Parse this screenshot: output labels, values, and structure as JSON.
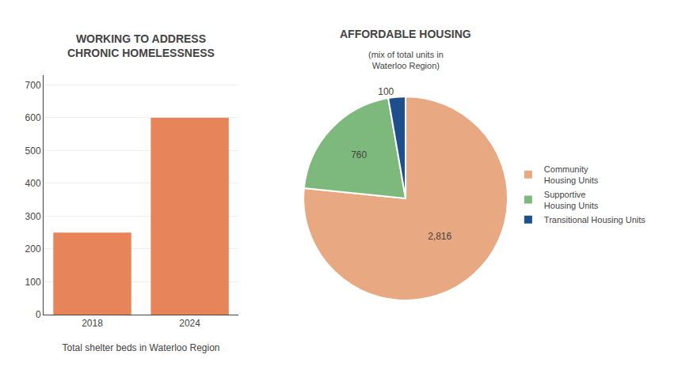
{
  "chart_data": [
    {
      "type": "bar",
      "title": "WORKING TO ADDRESS\nCHRONIC HOMELESSNESS",
      "xlabel": "Total shelter beds in Waterloo Region",
      "categories": [
        "2018",
        "2024"
      ],
      "values": [
        250,
        600
      ],
      "color": "#e8845a",
      "ylim": [
        0,
        730
      ],
      "yticks": [
        0,
        100,
        200,
        300,
        400,
        500,
        600,
        700
      ],
      "grid": true
    },
    {
      "type": "pie",
      "title": "AFFORDABLE HOUSING",
      "subtitle": "(mix of total units in\nWaterloo Region)",
      "categories": [
        "Community\nHousing Units",
        "Supportive\nHousing Units",
        "Transitional Housing Units"
      ],
      "values": [
        2816,
        760,
        100
      ],
      "value_labels": [
        "2,816",
        "760",
        "100"
      ],
      "colors": [
        "#e8a882",
        "#7db87d",
        "#1f4e8c"
      ],
      "data_labels": true,
      "legend": "right"
    }
  ]
}
